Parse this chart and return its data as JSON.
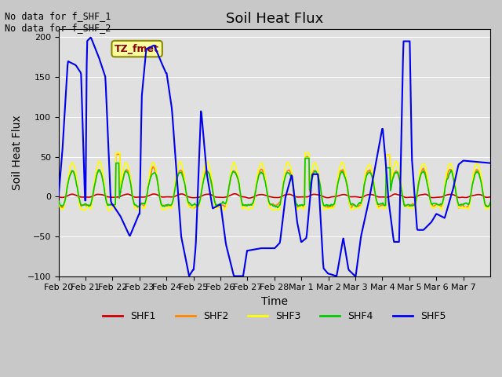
{
  "title": "Soil Heat Flux",
  "ylabel": "Soil Heat Flux",
  "xlabel": "Time",
  "annotation_text": "No data for f_SHF_1\nNo data for f_SHF_2",
  "tz_label": "TZ_fmet",
  "ylim": [
    -100,
    210
  ],
  "yticks": [
    -100,
    -50,
    0,
    50,
    100,
    150,
    200
  ],
  "colors": {
    "SHF1": "#cc0000",
    "SHF2": "#ff8800",
    "SHF3": "#ffff00",
    "SHF4": "#00cc00",
    "SHF5": "#0000ee"
  },
  "legend_colors": [
    "#cc0000",
    "#ff8800",
    "#ffff00",
    "#00cc00",
    "#0000ee"
  ],
  "legend_labels": [
    "SHF1",
    "SHF2",
    "SHF3",
    "SHF4",
    "SHF5"
  ],
  "tick_labels": [
    "Feb 20",
    "Feb 21",
    "Feb 22",
    "Feb 23",
    "Feb 24",
    "Feb 25",
    "Feb 26",
    "Feb 27",
    "Feb 28",
    "Mar 1",
    "Mar 2",
    "Mar 3",
    "Mar 4",
    "Mar 5",
    "Mar 6",
    "Mar 7"
  ],
  "title_fontsize": 13,
  "label_fontsize": 10,
  "n_days": 16,
  "pts_per_day": 48
}
